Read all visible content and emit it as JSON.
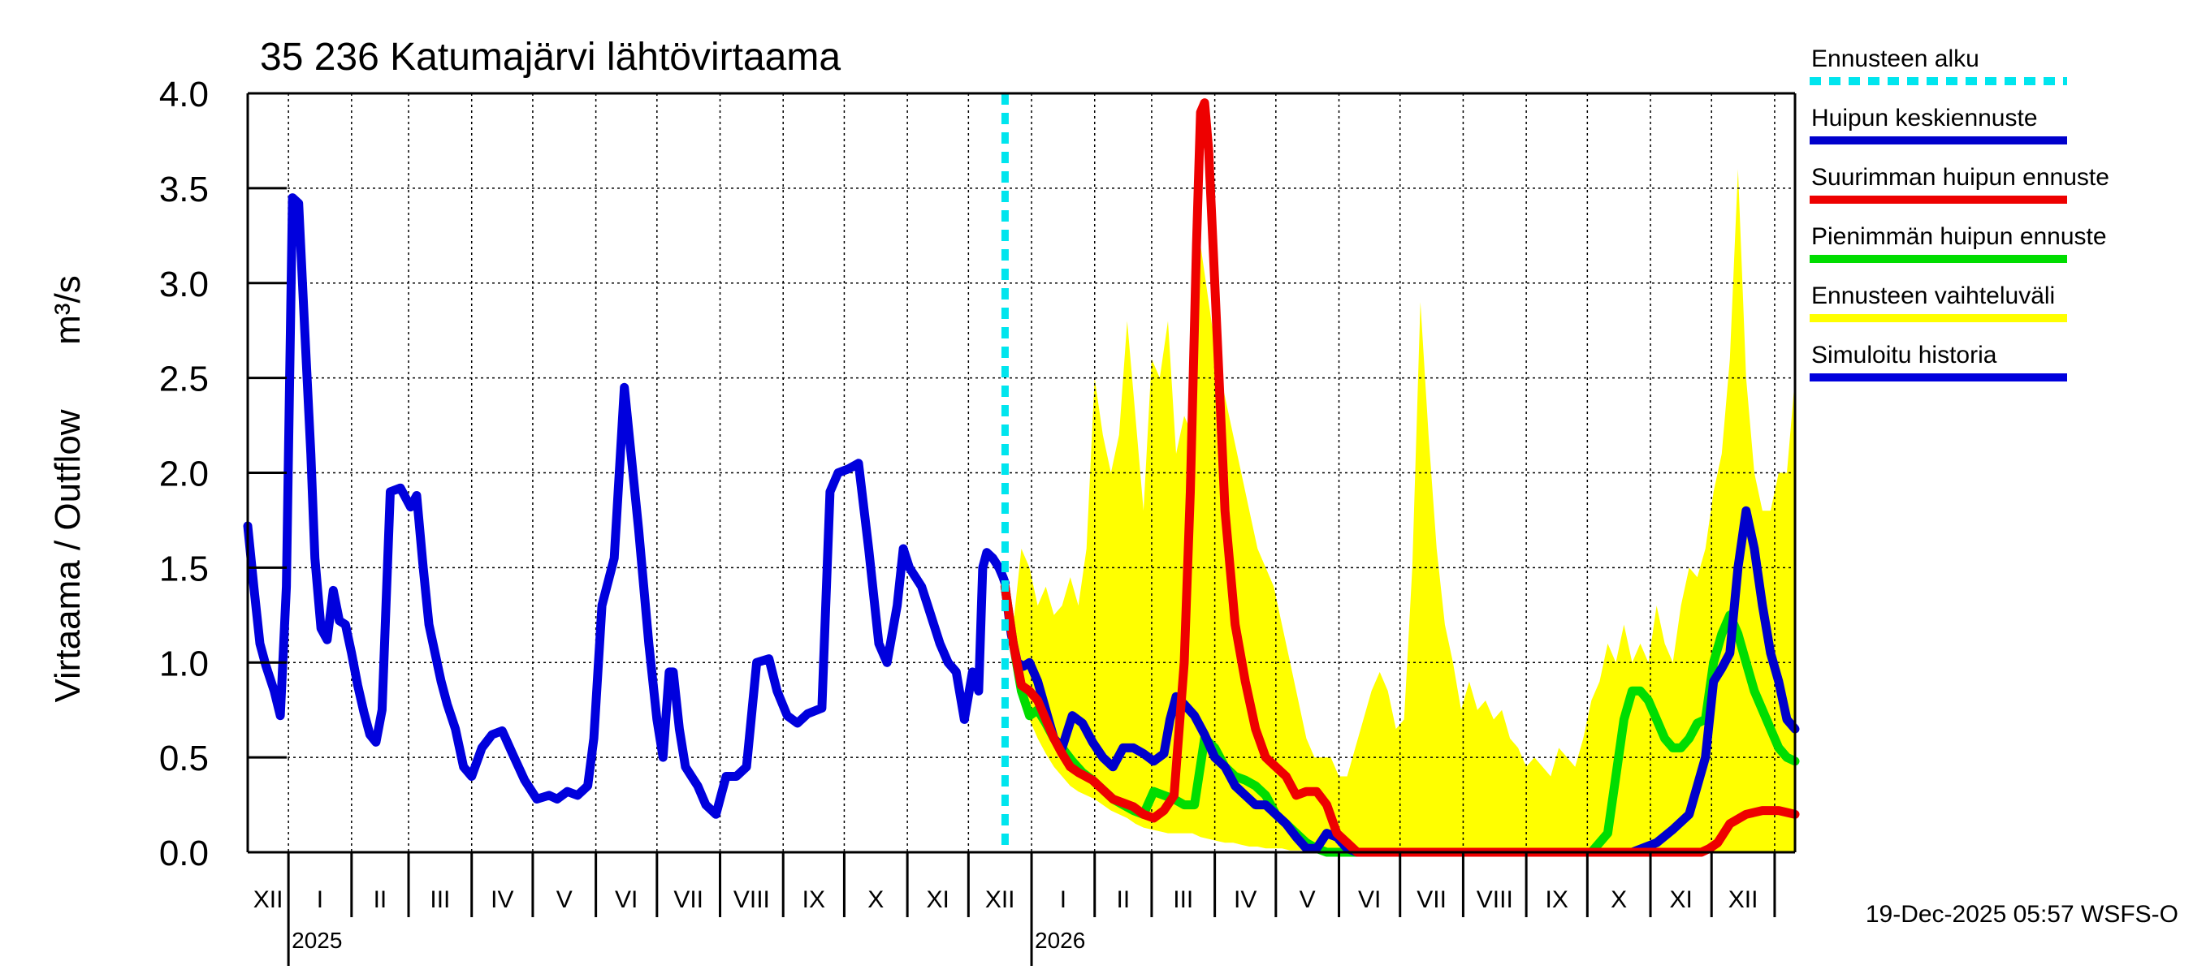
{
  "chart_data": {
    "type": "line",
    "title": "35 236 Katumajärvi lähtövirtaama",
    "ylabel": "Virtaama / Outflow",
    "yunit": "m³/s",
    "ylim": [
      0,
      4.0
    ],
    "yticks": [
      "0.0",
      "0.5",
      "1.0",
      "1.5",
      "2.0",
      "2.5",
      "3.0",
      "3.5",
      "4.0"
    ],
    "x_range_days": [
      -20,
      740
    ],
    "month_labels": [
      "XII",
      "I",
      "II",
      "III",
      "IV",
      "V",
      "VI",
      "VII",
      "VIII",
      "IX",
      "X",
      "XI",
      "XII",
      "I",
      "II",
      "III",
      "IV",
      "V",
      "VI",
      "VII",
      "VIII",
      "IX",
      "X",
      "XI",
      "XII"
    ],
    "month_starts": [
      -31,
      0,
      31,
      59,
      90,
      120,
      151,
      181,
      212,
      243,
      273,
      304,
      334,
      365,
      396,
      424,
      455,
      485,
      516,
      546,
      577,
      608,
      638,
      669,
      699,
      730
    ],
    "year_labels": [
      {
        "label": "2025",
        "x": 0
      },
      {
        "label": "2026",
        "x": 365
      }
    ],
    "forecast_start_x": 352,
    "footer": "19-Dec-2025 05:57 WSFS-O",
    "legend": [
      {
        "key": "forecast_start",
        "label": "Ennusteen alku",
        "color": "#00e5ee",
        "dashed": true
      },
      {
        "key": "median_peak",
        "label": "Huipun keskiennuste",
        "color": "#0000cc"
      },
      {
        "key": "max_peak",
        "label": "Suurimman huipun ennuste",
        "color": "#ee0000"
      },
      {
        "key": "min_peak",
        "label": "Pienimmän huipun ennuste",
        "color": "#00dd00"
      },
      {
        "key": "range",
        "label": "Ennusteen vaihteluväli",
        "color": "#ffff00"
      },
      {
        "key": "history",
        "label": "Simuloitu historia",
        "color": "#0000dd"
      }
    ],
    "series": [
      {
        "name": "Simuloitu historia",
        "color": "#0000dd",
        "x": [
          -20,
          -17,
          -14,
          -11,
          -7,
          -4,
          -1,
          2,
          5,
          8,
          11,
          13,
          16,
          19,
          22,
          25,
          28,
          31,
          34,
          37,
          40,
          43,
          46,
          50,
          55,
          60,
          63,
          66,
          69,
          72,
          75,
          78,
          82,
          86,
          90,
          95,
          100,
          105,
          110,
          116,
          122,
          128,
          132,
          137,
          142,
          147,
          150,
          154,
          160,
          165,
          172,
          177,
          181,
          184,
          187,
          189,
          192,
          195,
          198,
          201,
          205,
          210,
          215,
          220,
          225,
          230,
          236,
          240,
          245,
          250,
          255,
          262,
          266,
          270,
          275,
          280,
          285,
          290,
          294,
          299,
          302,
          305,
          308,
          311,
          314,
          317,
          320,
          324,
          328,
          332,
          336,
          339,
          341,
          343,
          346,
          349,
          351,
          352
        ],
        "y": [
          1.72,
          1.4,
          1.1,
          0.98,
          0.85,
          0.72,
          1.4,
          3.45,
          3.42,
          2.75,
          2.1,
          1.55,
          1.18,
          1.12,
          1.38,
          1.22,
          1.2,
          1.05,
          0.88,
          0.74,
          0.62,
          0.58,
          0.75,
          1.9,
          1.92,
          1.82,
          1.88,
          1.52,
          1.2,
          1.05,
          0.9,
          0.78,
          0.65,
          0.45,
          0.4,
          0.55,
          0.62,
          0.64,
          0.52,
          0.38,
          0.28,
          0.3,
          0.28,
          0.32,
          0.3,
          0.35,
          0.6,
          1.3,
          1.55,
          2.45,
          1.7,
          1.1,
          0.7,
          0.5,
          0.95,
          0.95,
          0.65,
          0.45,
          0.4,
          0.35,
          0.25,
          0.2,
          0.4,
          0.4,
          0.45,
          1.0,
          1.02,
          0.85,
          0.72,
          0.68,
          0.73,
          0.76,
          1.9,
          2.0,
          2.02,
          2.05,
          1.6,
          1.1,
          1.0,
          1.3,
          1.6,
          1.5,
          1.45,
          1.4,
          1.3,
          1.2,
          1.1,
          1.0,
          0.95,
          0.7,
          0.95,
          0.85,
          1.5,
          1.58,
          1.55,
          1.5,
          1.45,
          1.42
        ]
      },
      {
        "name": "Huipun keskiennuste",
        "color": "#0000cc",
        "x": [
          352,
          355,
          358,
          361,
          364,
          368,
          372,
          376,
          380,
          385,
          390,
          395,
          400,
          405,
          410,
          415,
          420,
          425,
          430,
          433,
          436,
          440,
          445,
          450,
          455,
          460,
          465,
          470,
          475,
          480,
          485,
          490,
          495,
          500,
          505,
          510,
          515,
          520,
          525,
          530,
          540,
          560,
          600,
          640,
          660,
          672,
          680,
          688,
          692,
          696,
          700,
          704,
          708,
          712,
          716,
          720,
          724,
          728,
          732,
          736,
          740
        ],
        "y": [
          1.4,
          1.15,
          1.0,
          0.98,
          1.0,
          0.9,
          0.75,
          0.6,
          0.55,
          0.72,
          0.68,
          0.58,
          0.5,
          0.45,
          0.55,
          0.55,
          0.52,
          0.48,
          0.52,
          0.7,
          0.82,
          0.78,
          0.72,
          0.62,
          0.5,
          0.45,
          0.35,
          0.3,
          0.25,
          0.25,
          0.2,
          0.15,
          0.08,
          0.02,
          0.02,
          0.1,
          0.08,
          0.02,
          0.0,
          0.0,
          0.0,
          0.0,
          0.0,
          0.0,
          0.0,
          0.05,
          0.12,
          0.2,
          0.35,
          0.5,
          0.9,
          0.97,
          1.05,
          1.5,
          1.8,
          1.6,
          1.3,
          1.05,
          0.9,
          0.7,
          0.65
        ]
      },
      {
        "name": "Suurimman huipun ennuste",
        "color": "#ee0000",
        "x": [
          352,
          356,
          360,
          364,
          368,
          372,
          376,
          380,
          384,
          388,
          395,
          400,
          405,
          410,
          415,
          420,
          425,
          430,
          435,
          440,
          443,
          446,
          448,
          450,
          452,
          455,
          460,
          465,
          470,
          475,
          480,
          485,
          490,
          495,
          500,
          505,
          510,
          515,
          520,
          525,
          540,
          600,
          660,
          672,
          680,
          686,
          690,
          694,
          698,
          702,
          708,
          716,
          724,
          732,
          740
        ],
        "y": [
          1.4,
          1.1,
          0.88,
          0.85,
          0.8,
          0.7,
          0.6,
          0.52,
          0.45,
          0.42,
          0.38,
          0.33,
          0.28,
          0.26,
          0.24,
          0.2,
          0.18,
          0.22,
          0.3,
          1.0,
          1.9,
          3.2,
          3.9,
          3.95,
          3.7,
          3.0,
          1.8,
          1.2,
          0.9,
          0.65,
          0.5,
          0.45,
          0.4,
          0.3,
          0.32,
          0.32,
          0.25,
          0.1,
          0.05,
          0.0,
          0.0,
          0.0,
          0.0,
          0.0,
          0.0,
          0.0,
          0.0,
          0.0,
          0.02,
          0.05,
          0.15,
          0.2,
          0.22,
          0.22,
          0.2
        ]
      },
      {
        "name": "Pienimmän huipun ennuste",
        "color": "#00dd00",
        "x": [
          352,
          356,
          360,
          364,
          368,
          372,
          376,
          380,
          385,
          390,
          395,
          400,
          405,
          410,
          415,
          420,
          425,
          430,
          435,
          440,
          445,
          450,
          455,
          460,
          465,
          470,
          475,
          480,
          485,
          490,
          495,
          500,
          505,
          510,
          515,
          520,
          540,
          600,
          640,
          648,
          652,
          656,
          660,
          664,
          668,
          672,
          676,
          680,
          684,
          688,
          692,
          696,
          700,
          704,
          708,
          712,
          716,
          720,
          724,
          728,
          732,
          736,
          740
        ],
        "y": [
          1.4,
          1.1,
          0.85,
          0.72,
          0.75,
          0.68,
          0.6,
          0.55,
          0.48,
          0.42,
          0.38,
          0.33,
          0.28,
          0.25,
          0.22,
          0.2,
          0.32,
          0.3,
          0.28,
          0.25,
          0.25,
          0.6,
          0.55,
          0.45,
          0.4,
          0.38,
          0.35,
          0.3,
          0.2,
          0.15,
          0.1,
          0.05,
          0.02,
          0.0,
          0.0,
          0.0,
          0.0,
          0.0,
          0.0,
          0.1,
          0.4,
          0.7,
          0.85,
          0.85,
          0.8,
          0.7,
          0.6,
          0.55,
          0.55,
          0.6,
          0.68,
          0.7,
          1.0,
          1.15,
          1.25,
          1.15,
          1.0,
          0.85,
          0.75,
          0.65,
          0.55,
          0.5,
          0.48
        ]
      },
      {
        "name": "Ennusteen vaihteluväli",
        "color": "#ffff00",
        "band": true,
        "x": [
          352,
          356,
          360,
          364,
          368,
          372,
          376,
          380,
          384,
          388,
          392,
          396,
          400,
          404,
          408,
          412,
          416,
          420,
          424,
          428,
          432,
          436,
          440,
          444,
          448,
          452,
          456,
          460,
          464,
          468,
          472,
          476,
          480,
          484,
          488,
          492,
          496,
          500,
          504,
          508,
          512,
          516,
          520,
          524,
          528,
          532,
          536,
          540,
          544,
          548,
          552,
          556,
          560,
          564,
          568,
          572,
          576,
          580,
          584,
          588,
          592,
          596,
          600,
          604,
          608,
          612,
          616,
          620,
          624,
          628,
          632,
          636,
          640,
          644,
          648,
          652,
          656,
          660,
          664,
          668,
          672,
          676,
          680,
          684,
          688,
          692,
          696,
          700,
          704,
          708,
          712,
          716,
          720,
          724,
          728,
          732,
          736,
          740
        ],
        "upper": [
          1.4,
          1.2,
          1.6,
          1.5,
          1.3,
          1.4,
          1.25,
          1.3,
          1.45,
          1.3,
          1.6,
          2.5,
          2.2,
          2.0,
          2.2,
          2.8,
          2.3,
          1.8,
          2.6,
          2.5,
          2.8,
          2.1,
          2.3,
          2.2,
          3.2,
          2.9,
          2.6,
          2.4,
          2.2,
          2.0,
          1.8,
          1.6,
          1.5,
          1.4,
          1.2,
          1.0,
          0.8,
          0.6,
          0.5,
          0.5,
          0.5,
          0.4,
          0.4,
          0.55,
          0.7,
          0.85,
          0.95,
          0.85,
          0.65,
          0.7,
          1.5,
          2.9,
          2.2,
          1.6,
          1.2,
          1.0,
          0.75,
          0.9,
          0.75,
          0.8,
          0.7,
          0.75,
          0.6,
          0.55,
          0.45,
          0.5,
          0.45,
          0.4,
          0.55,
          0.5,
          0.45,
          0.6,
          0.8,
          0.9,
          1.1,
          1.0,
          1.2,
          1.0,
          1.1,
          1.0,
          1.3,
          1.1,
          1.0,
          1.3,
          1.5,
          1.45,
          1.6,
          1.9,
          2.1,
          2.6,
          3.6,
          2.5,
          2.0,
          1.8,
          1.8,
          2.0,
          2.0,
          2.5
        ],
        "lower": [
          1.4,
          1.0,
          0.85,
          0.7,
          0.6,
          0.52,
          0.45,
          0.4,
          0.35,
          0.32,
          0.3,
          0.28,
          0.25,
          0.22,
          0.2,
          0.18,
          0.15,
          0.13,
          0.12,
          0.11,
          0.1,
          0.1,
          0.1,
          0.1,
          0.08,
          0.07,
          0.06,
          0.05,
          0.05,
          0.04,
          0.03,
          0.03,
          0.02,
          0.02,
          0.02,
          0.01,
          0.01,
          0.01,
          0.0,
          0.0,
          0.0,
          0.0,
          0.0,
          0.0,
          0.0,
          0.0,
          0.0,
          0.0,
          0.0,
          0.0,
          0.0,
          0.0,
          0.0,
          0.0,
          0.0,
          0.0,
          0.0,
          0.0,
          0.0,
          0.0,
          0.0,
          0.0,
          0.0,
          0.0,
          0.0,
          0.0,
          0.0,
          0.0,
          0.0,
          0.0,
          0.0,
          0.0,
          0.0,
          0.0,
          0.0,
          0.0,
          0.0,
          0.0,
          0.0,
          0.0,
          0.0,
          0.0,
          0.0,
          0.0,
          0.0,
          0.0,
          0.0,
          0.0,
          0.0,
          0.0,
          0.0,
          0.0,
          0.0,
          0.0,
          0.0,
          0.0,
          0.0,
          0.0
        ]
      }
    ]
  }
}
